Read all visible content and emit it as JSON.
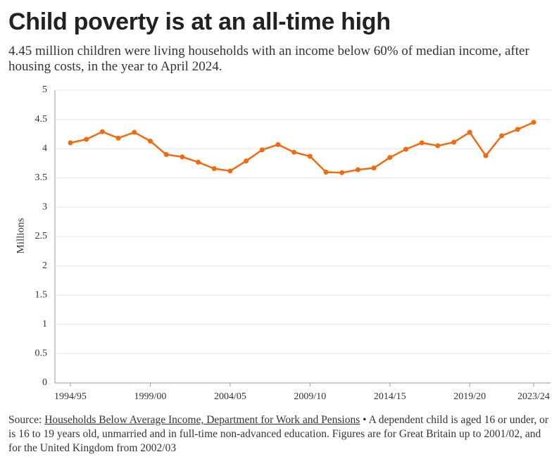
{
  "chart_data": {
    "type": "line",
    "title": "Child poverty is at an all-time high",
    "subtitle": "4.45 million children were living households with an income below 60% of median income, after housing costs, in the year to April 2024.",
    "y_label": "Millions",
    "categories": [
      "1994/95",
      null,
      null,
      null,
      null,
      "1999/00",
      null,
      null,
      null,
      null,
      "2004/05",
      null,
      null,
      null,
      null,
      "2009/10",
      null,
      null,
      null,
      null,
      "2014/15",
      null,
      null,
      null,
      null,
      "2019/20",
      null,
      null,
      null,
      "2023/24"
    ],
    "values": [
      4.1,
      4.16,
      4.29,
      4.18,
      4.28,
      4.13,
      3.9,
      3.86,
      3.77,
      3.66,
      3.62,
      3.79,
      3.98,
      4.07,
      3.94,
      3.87,
      3.6,
      3.59,
      3.64,
      3.67,
      3.85,
      3.99,
      4.1,
      4.05,
      4.11,
      4.28,
      3.88,
      4.22,
      4.33,
      4.45
    ],
    "color": "#f06a0f",
    "ylim": [
      0,
      5
    ],
    "yticks": [
      0,
      0.5,
      1,
      1.5,
      2,
      2.5,
      3,
      3.5,
      4,
      4.5,
      5
    ],
    "grid": true,
    "source": {
      "prefix": "Source:",
      "link": "Households Below Average Income, Department for Work and Pensions",
      "note": "• A dependent child is aged 16 or under, or is 16 to 19 years old, unmarried and in full-time non-advanced education. Figures are for Great Britain up to 2001/02, and for the United Kingdom from 2002/03"
    }
  }
}
